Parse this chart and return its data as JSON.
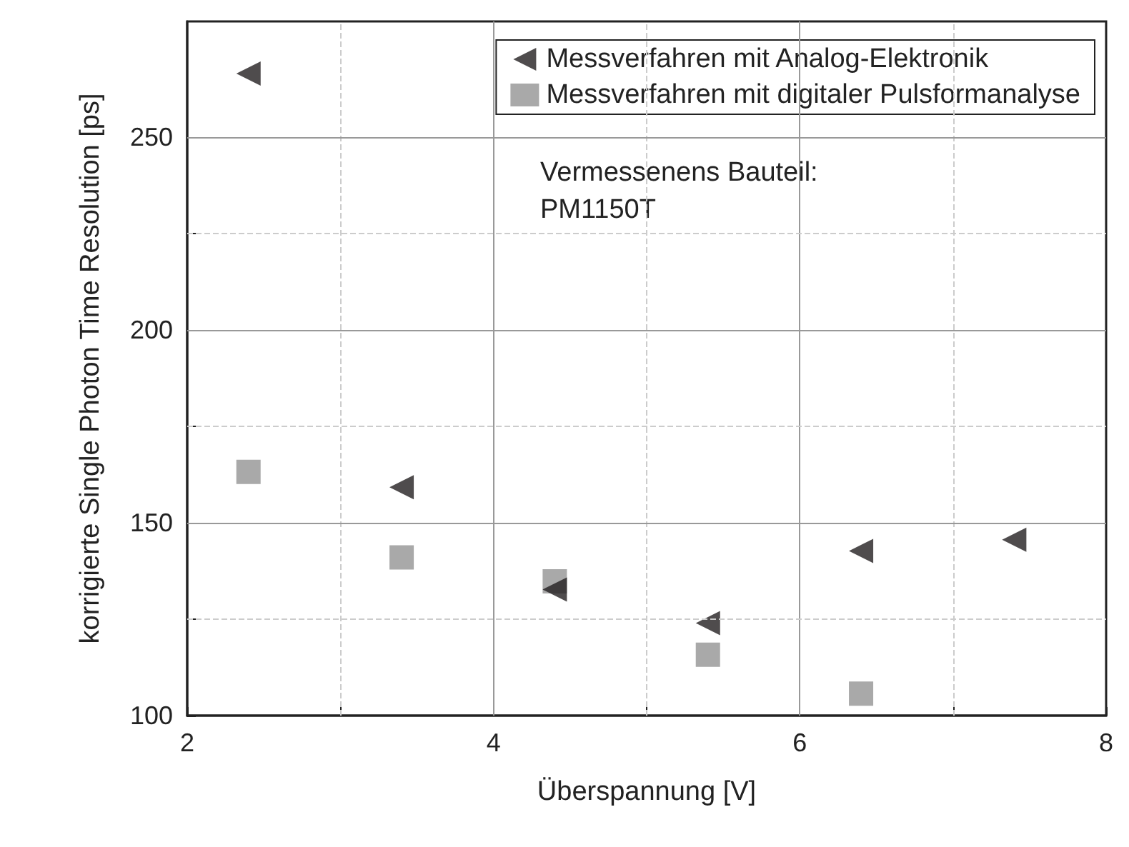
{
  "chart_data": {
    "type": "scatter",
    "xlabel": "Überspannung [V]",
    "ylabel": "korrigierte Single Photon Time Resolution [ps]",
    "annotations": [
      "Vermessenens Bauteil:\nPM1150T"
    ],
    "xlim": [
      2,
      8
    ],
    "xticks": [
      2,
      {
        "value": 3,
        "label": null
      },
      4,
      {
        "value": 5,
        "label": null
      },
      6,
      {
        "value": 7,
        "label": null
      },
      8
    ],
    "ylim": [
      100,
      280
    ],
    "yticks": [
      100,
      {
        "value": 125,
        "label": null
      },
      150,
      {
        "value": 175,
        "label": null
      },
      200,
      {
        "value": 225,
        "label": null
      },
      250
    ],
    "grid": true,
    "legend": "top right",
    "series": [
      {
        "name": "Messverfahren mit Analog-Elektronik",
        "color": "#231f20",
        "marker": "triangle",
        "x": [
          2.4,
          3.4,
          4.4,
          5.4,
          6.4,
          7.4
        ],
        "values": [
          266.5,
          159.2,
          132.7,
          124,
          142.7,
          145.6
        ]
      },
      {
        "name": "Messverfahren mit digitaler Pulsformanalyse",
        "color": "#939393",
        "marker": "square",
        "x": [
          2.4,
          3.4,
          4.4,
          5.4,
          6.4
        ],
        "values": [
          163.2,
          141,
          134.8,
          115.8,
          105.7
        ]
      }
    ]
  }
}
